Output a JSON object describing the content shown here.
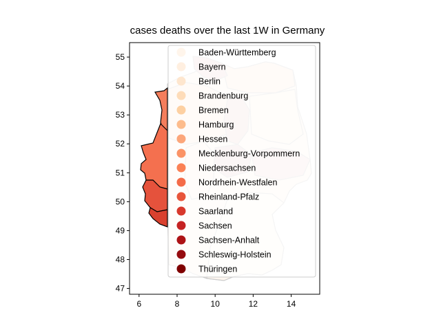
{
  "chart_data": {
    "type": "choropleth",
    "title": "cases deaths over the last 1W in Germany",
    "xlabel": "",
    "ylabel": "",
    "xlim": [
      5.5,
      15.5
    ],
    "ylim": [
      46.8,
      55.5
    ],
    "x_ticks": [
      6,
      8,
      10,
      12,
      14
    ],
    "y_ticks": [
      47,
      48,
      49,
      50,
      51,
      52,
      53,
      54,
      55
    ],
    "colormap": "OrRd-like",
    "legend_position": "upper right",
    "legend": [
      {
        "name": "Baden-Württemberg",
        "color": "#fff5eb"
      },
      {
        "name": "Bayern",
        "color": "#ffefe0"
      },
      {
        "name": "Berlin",
        "color": "#fee6ce"
      },
      {
        "name": "Brandenburg",
        "color": "#fedcb9"
      },
      {
        "name": "Bremen",
        "color": "#fdd0a2"
      },
      {
        "name": "Hamburg",
        "color": "#fdbc8c"
      },
      {
        "name": "Hessen",
        "color": "#fca67a"
      },
      {
        "name": "Mecklenburg-Vorpommern",
        "color": "#fb9366"
      },
      {
        "name": "Niedersachsen",
        "color": "#fb8155"
      },
      {
        "name": "Nordrhein-Westfalen",
        "color": "#f46b48"
      },
      {
        "name": "Rheinland-Pfalz",
        "color": "#e8553a"
      },
      {
        "name": "Saarland",
        "color": "#d8382b"
      },
      {
        "name": "Sachsen",
        "color": "#c52222"
      },
      {
        "name": "Sachsen-Anhalt",
        "color": "#ad1215"
      },
      {
        "name": "Schleswig-Holstein",
        "color": "#950b0e"
      },
      {
        "name": "Thüringen",
        "color": "#7f0000"
      }
    ]
  }
}
